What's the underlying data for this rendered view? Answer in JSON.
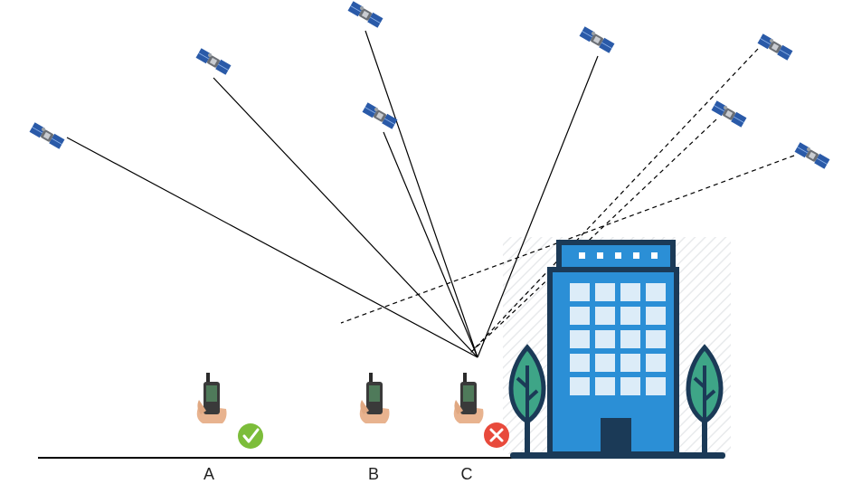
{
  "positions": [
    {
      "id": "A",
      "label": "A",
      "status": "success"
    },
    {
      "id": "B",
      "label": "B",
      "status": "none"
    },
    {
      "id": "C",
      "label": "C",
      "status": "failure"
    }
  ],
  "colors": {
    "building_blue": "#2b8fd6",
    "building_dark": "#1b3a57",
    "window_light": "#dcecf8",
    "tree_green": "#3ea587",
    "tree_dark": "#1b3a57",
    "success_green": "#7cbd3a",
    "failure_red": "#e84a3c",
    "line_color": "#000000"
  },
  "icons": {
    "satellite": "satellite-icon",
    "receiver": "gnss-handheld-receiver-icon",
    "check": "check-circle-icon",
    "cross": "cross-circle-icon",
    "building": "office-building-icon",
    "tree": "tree-icon"
  },
  "signal_paths": [
    {
      "satellite": 1,
      "type": "direct-los"
    },
    {
      "satellite": 2,
      "type": "direct-los"
    },
    {
      "satellite": 3,
      "type": "direct-los"
    },
    {
      "satellite": 4,
      "type": "direct-los"
    },
    {
      "satellite": 5,
      "type": "direct-los"
    },
    {
      "satellite": 6,
      "type": "reflected-multipath"
    },
    {
      "satellite": 7,
      "type": "reflected-multipath"
    },
    {
      "satellite": 8,
      "type": "reflected-multipath"
    }
  ]
}
